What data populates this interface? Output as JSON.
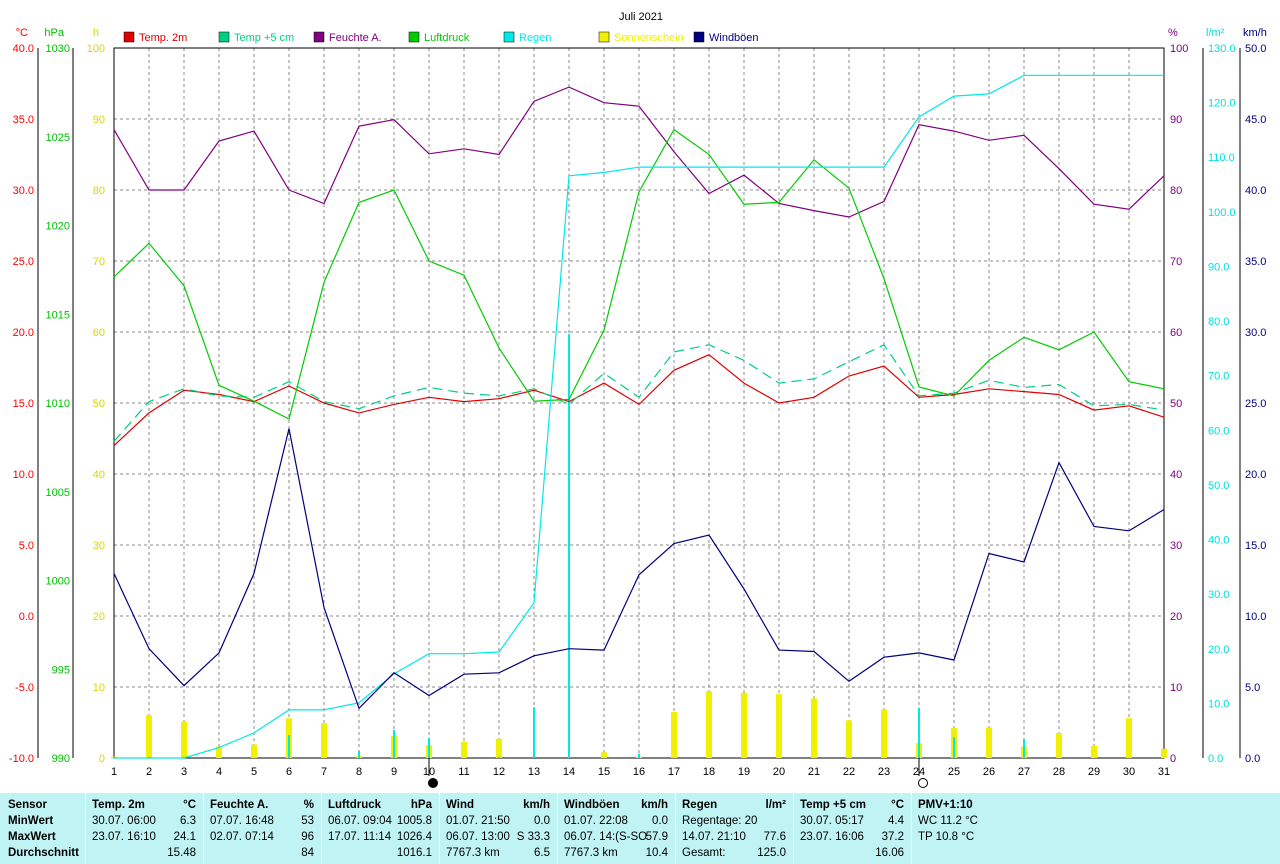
{
  "chart_data": {
    "type": "line",
    "title": "Juli 2021",
    "categories": [
      "1",
      "2",
      "3",
      "4",
      "5",
      "6",
      "7",
      "8",
      "9",
      "10",
      "11",
      "12",
      "13",
      "14",
      "15",
      "16",
      "17",
      "18",
      "19",
      "20",
      "21",
      "22",
      "23",
      "24",
      "25",
      "26",
      "27",
      "28",
      "29",
      "30",
      "31"
    ],
    "axes": {
      "temp": {
        "unit": "°C",
        "range": [
          -10,
          40
        ],
        "ticks": [
          "40.0",
          "35.0",
          "30.0",
          "25.0",
          "20.0",
          "15.0",
          "10.0",
          "5.0",
          "0.0",
          "-5.0",
          "-10.0"
        ],
        "color": "#ff0000"
      },
      "pressure": {
        "unit": "hPa",
        "range": [
          990,
          1030
        ],
        "ticks": [
          "1030",
          "1025",
          "1020",
          "1015",
          "1010",
          "1005",
          "1000",
          "995",
          "990"
        ],
        "color": "#00c000"
      },
      "sun": {
        "unit": "h",
        "range": [
          0,
          100
        ],
        "ticks": [
          "100",
          "90",
          "80",
          "70",
          "60",
          "50",
          "40",
          "30",
          "20",
          "10",
          "0"
        ],
        "color": "#d8d800"
      },
      "humidity": {
        "unit": "%",
        "range": [
          0,
          100
        ],
        "ticks": [
          "100",
          "90",
          "80",
          "70",
          "60",
          "50",
          "40",
          "30",
          "20",
          "10",
          "0"
        ],
        "color": "#800080"
      },
      "rain": {
        "unit": "l/m²",
        "range": [
          0,
          130
        ],
        "ticks": [
          "130.0",
          "120.0",
          "110.0",
          "100.0",
          "90.0",
          "80.0",
          "70.0",
          "60.0",
          "50.0",
          "40.0",
          "30.0",
          "20.0",
          "10.0",
          "0.0"
        ],
        "color": "#00e0e0"
      },
      "wind": {
        "unit": "km/h",
        "range": [
          0,
          50
        ],
        "ticks": [
          "50.0",
          "45.0",
          "40.0",
          "35.0",
          "30.0",
          "25.0",
          "20.0",
          "15.0",
          "10.0",
          "5.0",
          "0.0"
        ],
        "color": "#000080"
      }
    },
    "series": [
      {
        "name": "Temp. 2m",
        "axis": "temp",
        "color": "#e00000",
        "dash": false,
        "values": [
          12.0,
          14.3,
          15.9,
          15.6,
          15.1,
          16.2,
          15.0,
          14.3,
          14.9,
          15.4,
          15.1,
          15.3,
          15.9,
          15.1,
          16.4,
          14.9,
          17.3,
          18.4,
          16.4,
          15.0,
          15.4,
          16.9,
          17.6,
          15.4,
          15.6,
          16.0,
          15.8,
          15.6,
          14.5,
          14.8,
          14.0
        ]
      },
      {
        "name": "Temp +5 cm",
        "axis": "temp",
        "color": "#00d080",
        "dash": true,
        "values": [
          12.3,
          15.1,
          16.0,
          15.5,
          15.4,
          16.5,
          15.1,
          14.6,
          15.5,
          16.1,
          15.7,
          15.5,
          16.0,
          14.9,
          17.1,
          15.4,
          18.6,
          19.1,
          18.0,
          16.4,
          16.7,
          17.9,
          19.1,
          15.5,
          15.7,
          16.6,
          16.1,
          16.3,
          14.8,
          14.9,
          14.5
        ]
      },
      {
        "name": "Feuchte A.",
        "axis": "humidity",
        "color": "#800080",
        "dash": false,
        "values": [
          88.5,
          80.0,
          80.0,
          86.9,
          88.3,
          80.0,
          78.1,
          89.0,
          89.9,
          85.1,
          85.8,
          85.0,
          92.5,
          94.5,
          92.3,
          91.8,
          85.4,
          79.5,
          82.1,
          78.1,
          77.1,
          76.2,
          78.4,
          89.2,
          88.3,
          87.0,
          87.7,
          83.0,
          78.0,
          77.3,
          82.0
        ]
      },
      {
        "name": "Luftdruck",
        "axis": "pressure",
        "color": "#00cc00",
        "dash": false,
        "values": [
          1017.1,
          1019.0,
          1016.6,
          1011.0,
          1010.1,
          1009.1,
          1016.8,
          1021.3,
          1022.0,
          1018.0,
          1017.2,
          1013.1,
          1010.1,
          1010.2,
          1014.1,
          1021.9,
          1025.4,
          1024.0,
          1021.2,
          1021.3,
          1023.7,
          1022.1,
          1017.0,
          1010.9,
          1010.4,
          1012.4,
          1013.7,
          1013.0,
          1014.0,
          1011.2,
          1010.8
        ]
      },
      {
        "name": "Regen",
        "axis": "rain",
        "color": "#00e8e8",
        "dash": false,
        "values": [
          0.0,
          0.0,
          0.0,
          1.9,
          4.6,
          8.8,
          8.8,
          10.1,
          15.4,
          19.1,
          19.1,
          19.4,
          28.4,
          106.6,
          107.2,
          108.2,
          108.2,
          108.2,
          108.2,
          108.2,
          108.2,
          108.2,
          108.2,
          117.4,
          121.2,
          121.6,
          125.0,
          125.0,
          125.0,
          125.0,
          125.0
        ]
      },
      {
        "name": "Sonnenschein",
        "axis": "sun",
        "color": "#f0f000",
        "dash": false,
        "bars": true,
        "values": [
          0.2,
          6.0,
          5.1,
          1.6,
          1.9,
          5.6,
          4.9,
          0.3,
          3.1,
          1.8,
          2.3,
          2.7,
          0.0,
          0.0,
          0.8,
          0.2,
          6.5,
          9.4,
          9.2,
          9.0,
          8.4,
          5.3,
          6.8,
          2.1,
          4.2,
          4.3,
          1.6,
          3.5,
          1.7,
          5.6,
          1.3
        ]
      },
      {
        "name": "Windböen",
        "axis": "wind",
        "color": "#000080",
        "dash": false,
        "values": [
          13.0,
          7.7,
          5.1,
          7.4,
          13.0,
          23.2,
          10.6,
          3.5,
          6.0,
          4.4,
          5.9,
          6.0,
          7.2,
          7.7,
          7.6,
          12.9,
          15.1,
          15.7,
          11.9,
          7.6,
          7.5,
          5.4,
          7.1,
          7.4,
          6.9,
          14.4,
          13.8,
          20.8,
          16.3,
          16.0,
          17.5
        ]
      }
    ],
    "rain_bars": {
      "name": "Regen",
      "values": [
        0.2,
        0.2,
        0.2,
        0.0,
        0.0,
        4.2,
        0.0,
        1.3,
        5.1,
        3.7,
        0.0,
        0.2,
        9.3,
        77.6,
        0.0,
        0.8,
        0.0,
        0.0,
        0.0,
        0.0,
        0.0,
        0.0,
        0.0,
        9.2,
        3.8,
        0.0,
        3.4,
        0.0,
        0.0,
        0.0,
        0.0
      ]
    },
    "bottom_markers": [
      {
        "day": "10",
        "symbol": "new-moon"
      },
      {
        "day": "24",
        "symbol": "full-moon"
      }
    ]
  },
  "stats": {
    "row_labels": [
      "Sensor",
      "MinWert",
      "MaxWert",
      "Durchschnitt"
    ],
    "columns": [
      {
        "title": "Temp. 2m",
        "unit": "°C",
        "min_time": "30.07.  06:00",
        "min_val": "6.3",
        "max_time": "23.07.  16:10",
        "max_val": "24.1",
        "avg_time": "",
        "avg_val": "15.48"
      },
      {
        "title": "Feuchte A.",
        "unit": "%",
        "min_time": "07.07.  16:48",
        "min_val": "53",
        "max_time": "02.07.  07:14",
        "max_val": "96",
        "avg_time": "",
        "avg_val": "84"
      },
      {
        "title": "Luftdruck",
        "unit": "hPa",
        "min_time": "06.07.  09:04",
        "min_val": "1005.8",
        "max_time": "17.07.  11:14",
        "max_val": "1026.4",
        "avg_time": "",
        "avg_val": "1016.1"
      },
      {
        "title": "Wind",
        "unit": "km/h",
        "min_time": "01.07.  21:50",
        "min_val": "0.0",
        "max_time": "06.07.  13:00",
        "max_val": "S 33.3",
        "avg_time": "7767.3 km",
        "avg_val": "6.5"
      },
      {
        "title": "Windböen",
        "unit": "km/h",
        "min_time": "01.07.  22:08",
        "min_val": "0.0",
        "max_time": "06.07.  14:(S-SO",
        "max_val": "57.9",
        "avg_time": "7767.3 km",
        "avg_val": "10.4"
      },
      {
        "title": "Regen",
        "unit": "l/m²",
        "min_time": "Regentage: 20",
        "min_val": "",
        "max_time": "14.07.  21:10",
        "max_val": "77.6",
        "avg_time": "Gesamt:",
        "avg_val": "125.0"
      },
      {
        "title": "Temp +5 cm",
        "unit": "°C",
        "min_time": "30.07.  05:17",
        "min_val": "4.4",
        "max_time": "23.07.  16:06",
        "max_val": "37.2",
        "avg_time": "",
        "avg_val": "16.06"
      },
      {
        "title": "PMV+1:10",
        "unit": "",
        "min_time": "WC 11.2 °C",
        "min_val": "",
        "max_time": "TP 10.8 °C",
        "max_val": "",
        "avg_time": "",
        "avg_val": ""
      }
    ]
  }
}
